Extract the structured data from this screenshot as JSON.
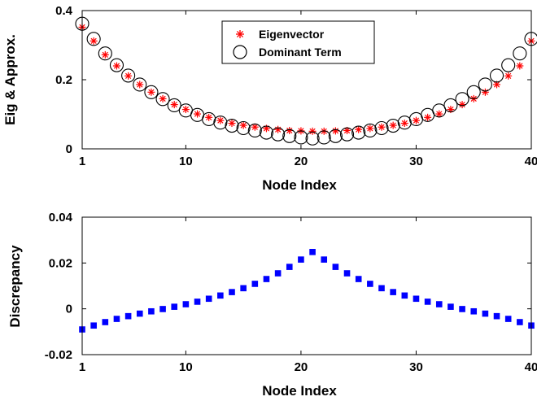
{
  "chart_data": [
    {
      "type": "scatter",
      "xlabel": "Node Index",
      "ylabel": "Eig & Approx.",
      "xlim": [
        1,
        40
      ],
      "ylim": [
        0,
        0.4
      ],
      "xticks": [
        1,
        10,
        20,
        30,
        40
      ],
      "yticks": [
        0,
        0.2,
        0.4
      ],
      "ytick_labels": [
        "0",
        "0.2",
        "0.4"
      ],
      "legend_position": "top-center",
      "series": [
        {
          "name": "Eigenvector",
          "marker": "asterisk",
          "color": "#ff0000",
          "x": [
            1,
            2,
            3,
            4,
            5,
            6,
            7,
            8,
            9,
            10,
            11,
            12,
            13,
            14,
            15,
            16,
            17,
            18,
            19,
            20,
            21,
            22,
            23,
            24,
            25,
            26,
            27,
            28,
            29,
            30,
            31,
            32,
            33,
            34,
            35,
            36,
            37,
            38,
            39,
            40
          ],
          "y": [
            0.352,
            0.312,
            0.272,
            0.24,
            0.211,
            0.186,
            0.164,
            0.145,
            0.128,
            0.114,
            0.101,
            0.091,
            0.082,
            0.074,
            0.068,
            0.063,
            0.059,
            0.056,
            0.053,
            0.052,
            0.051,
            0.051,
            0.052,
            0.053,
            0.056,
            0.059,
            0.063,
            0.068,
            0.074,
            0.082,
            0.091,
            0.101,
            0.114,
            0.128,
            0.145,
            0.164,
            0.186,
            0.211,
            0.24,
            0.312
          ]
        },
        {
          "name": "Dominant Term",
          "marker": "circle",
          "color": "#000000",
          "x": [
            1,
            2,
            3,
            4,
            5,
            6,
            7,
            8,
            9,
            10,
            11,
            12,
            13,
            14,
            15,
            16,
            17,
            18,
            19,
            20,
            21,
            22,
            23,
            24,
            25,
            26,
            27,
            28,
            29,
            30,
            31,
            32,
            33,
            34,
            35,
            36,
            37,
            38,
            39,
            40
          ],
          "y": [
            0.362,
            0.318,
            0.276,
            0.242,
            0.212,
            0.186,
            0.164,
            0.144,
            0.126,
            0.111,
            0.098,
            0.086,
            0.076,
            0.067,
            0.06,
            0.053,
            0.047,
            0.042,
            0.037,
            0.033,
            0.03,
            0.033,
            0.037,
            0.042,
            0.047,
            0.053,
            0.06,
            0.067,
            0.076,
            0.086,
            0.098,
            0.111,
            0.126,
            0.144,
            0.164,
            0.186,
            0.212,
            0.242,
            0.276,
            0.318
          ]
        }
      ]
    },
    {
      "type": "scatter",
      "xlabel": "Node Index",
      "ylabel": "Discrepancy",
      "xlim": [
        1,
        40
      ],
      "ylim": [
        -0.02,
        0.04
      ],
      "xticks": [
        1,
        10,
        20,
        30,
        40
      ],
      "yticks": [
        -0.02,
        0,
        0.02,
        0.04
      ],
      "ytick_labels": [
        "-0.02",
        "0",
        "0.02",
        "0.04"
      ],
      "series": [
        {
          "marker": "square",
          "color": "#0000ff",
          "x": [
            1,
            2,
            3,
            4,
            5,
            6,
            7,
            8,
            9,
            10,
            11,
            12,
            13,
            14,
            15,
            16,
            17,
            18,
            19,
            20,
            21,
            22,
            23,
            24,
            25,
            26,
            27,
            28,
            29,
            30,
            31,
            32,
            33,
            34,
            35,
            36,
            37,
            38,
            39,
            40
          ],
          "y": [
            -0.009,
            -0.0073,
            -0.0058,
            -0.0044,
            -0.0032,
            -0.0021,
            -0.0011,
            -0.0001,
            0.0009,
            0.002,
            0.0031,
            0.0044,
            0.0058,
            0.0073,
            0.009,
            0.0109,
            0.013,
            0.0155,
            0.0183,
            0.0215,
            0.0248,
            0.0215,
            0.0183,
            0.0155,
            0.013,
            0.0109,
            0.009,
            0.0073,
            0.0058,
            0.0044,
            0.0031,
            0.002,
            0.0009,
            -0.0001,
            -0.0011,
            -0.0021,
            -0.0032,
            -0.0044,
            -0.0058,
            -0.0073
          ]
        }
      ]
    }
  ]
}
